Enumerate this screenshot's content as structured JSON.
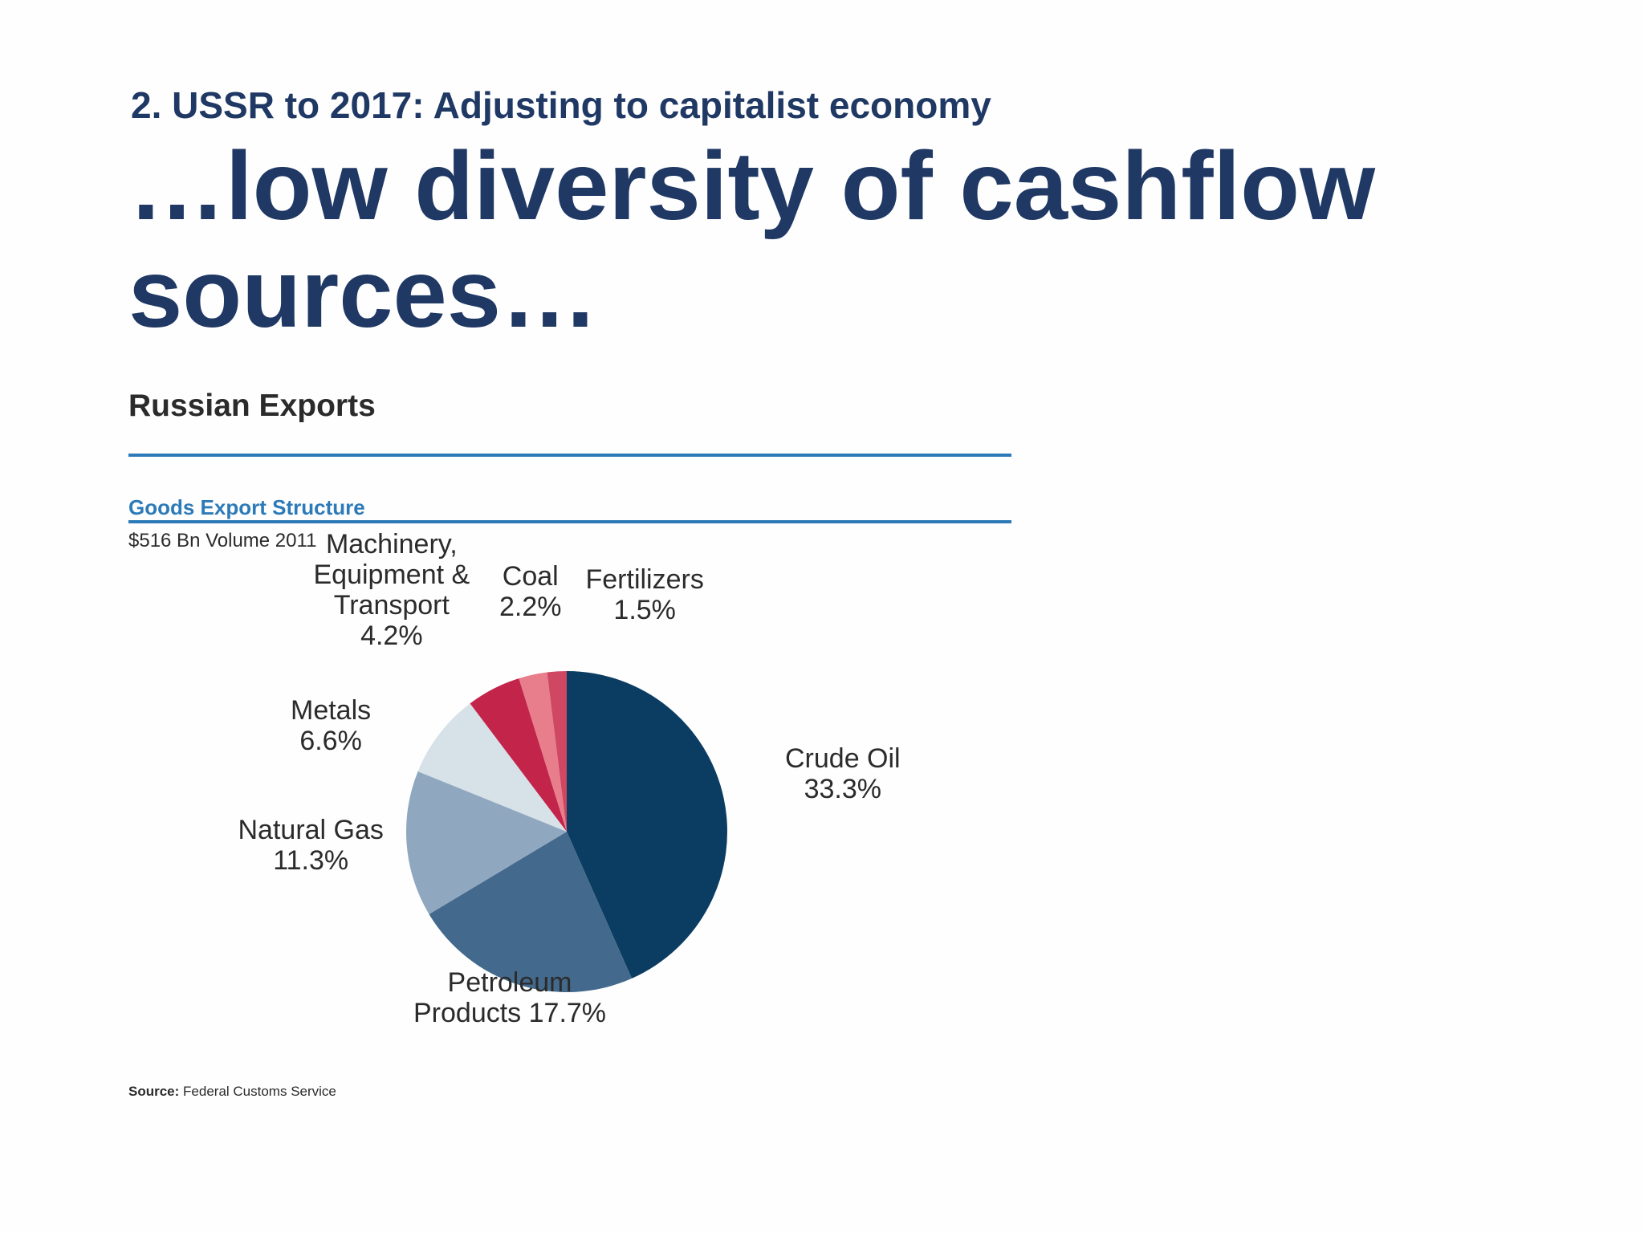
{
  "slide": {
    "subtitle": "2. USSR to 2017: Adjusting to capitalist economy",
    "headline": "…low diversity of cashflow sources…"
  },
  "figure": {
    "title": "Russian Exports",
    "subtitle": "Goods Export Structure",
    "note": "$516 Bn Volume 2011",
    "source_label": "Source:",
    "source_text": "Federal Customs Service"
  },
  "chart_data": {
    "type": "pie",
    "title": "Goods Export Structure",
    "slices": [
      {
        "name": "Crude Oil",
        "label": "Crude Oil\n33.3%",
        "value": 33.3,
        "color": "#0b3d62"
      },
      {
        "name": "Petroleum Products",
        "label": "Petroleum\nProducts 17.7%",
        "value": 17.7,
        "color": "#43698c"
      },
      {
        "name": "Natural Gas",
        "label": "Natural Gas\n11.3%",
        "value": 11.3,
        "color": "#8fa8bf"
      },
      {
        "name": "Metals",
        "label": "Metals\n6.6%",
        "value": 6.6,
        "color": "#d7e1e8"
      },
      {
        "name": "Machinery, Equipment & Transport",
        "label": "Machinery,\nEquipment &\nTransport\n4.2%",
        "value": 4.2,
        "color": "#c3244a"
      },
      {
        "name": "Coal",
        "label": "Coal\n2.2%",
        "value": 2.2,
        "color": "#e87d8c"
      },
      {
        "name": "Fertilizers",
        "label": "Fertilizers\n1.5%",
        "value": 1.5,
        "color": "#cf4763"
      }
    ]
  }
}
